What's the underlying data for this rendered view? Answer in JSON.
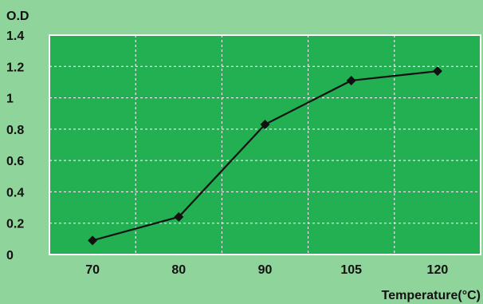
{
  "colors": {
    "page_background": "#8fd49a",
    "plot_background": "#22b052",
    "plot_border": "#ffffff",
    "gridline": "#ffffff",
    "series_line": "#111111",
    "marker": "#111111"
  },
  "chart_data": {
    "type": "line",
    "title": "",
    "ylabel": "O.D",
    "xlabel": "Temperature(°C)",
    "categories": [
      "70",
      "80",
      "90",
      "105",
      "120"
    ],
    "series": [
      {
        "marker": "diamond",
        "values": [
          0.09,
          0.24,
          0.83,
          1.11,
          1.17
        ]
      }
    ],
    "ylim": [
      0,
      1.4
    ],
    "yticks": [
      {
        "value": 0,
        "label": "0"
      },
      {
        "value": 0.2,
        "label": "0.2"
      },
      {
        "value": 0.4,
        "label": "0.4"
      },
      {
        "value": 0.6,
        "label": "0.6"
      },
      {
        "value": 0.8,
        "label": "0.8"
      },
      {
        "value": 1.0,
        "label": "1"
      },
      {
        "value": 1.2,
        "label": "1.2"
      },
      {
        "value": 1.4,
        "label": "1.4"
      }
    ],
    "grid": true,
    "grid_style": "dotted",
    "legend": "none"
  }
}
